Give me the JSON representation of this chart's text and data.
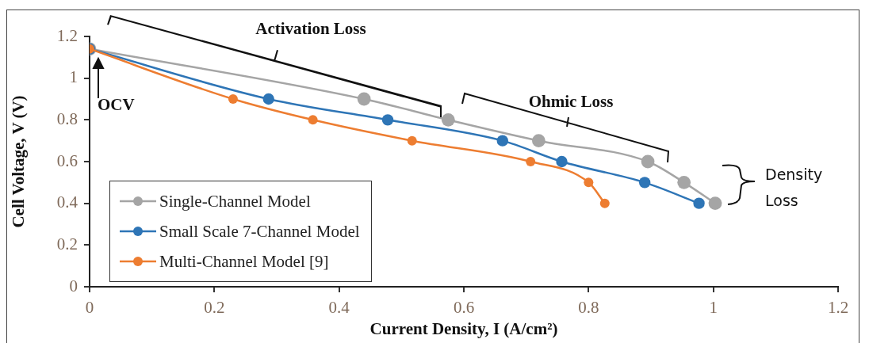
{
  "chart_data": {
    "type": "line",
    "xlabel": "Current Density, I (A/cm²)",
    "ylabel": "Cell Voltage, V (V)",
    "xlim": [
      0,
      1.2
    ],
    "xticks": [
      0,
      0.2,
      0.4,
      0.6,
      0.8,
      1,
      1.2
    ],
    "ylim": [
      0,
      1.2
    ],
    "yticks": [
      0,
      0.2,
      0.4,
      0.6,
      0.8,
      1,
      1.2
    ],
    "grid": false,
    "legend": "bottom left",
    "marker": "circle",
    "line_style": "solid",
    "series": [
      {
        "name": "Single-Channel Model",
        "color": "#a5a5a5",
        "x": [
          0,
          0.44,
          0.575,
          0.72,
          0.895,
          0.953,
          1.003
        ],
        "values": [
          1.14,
          0.9,
          0.8,
          0.7,
          0.6,
          0.5,
          0.4
        ]
      },
      {
        "name": "Small Scale 7-Channel Model",
        "color": "#2e75b6",
        "x": [
          0,
          0.287,
          0.478,
          0.662,
          0.757,
          0.89,
          0.977
        ],
        "values": [
          1.14,
          0.9,
          0.8,
          0.7,
          0.6,
          0.5,
          0.4
        ]
      },
      {
        "name": "Multi-Channel Model [9]",
        "color": "#ed7d31",
        "x": [
          0,
          0.23,
          0.358,
          0.517,
          0.707,
          0.8,
          0.826
        ],
        "values": [
          1.14,
          0.9,
          0.8,
          0.7,
          0.6,
          0.5,
          0.4
        ]
      }
    ],
    "annotations": [
      "Activation Loss",
      "Ohmic Loss",
      "OCV",
      "Density Loss"
    ]
  }
}
